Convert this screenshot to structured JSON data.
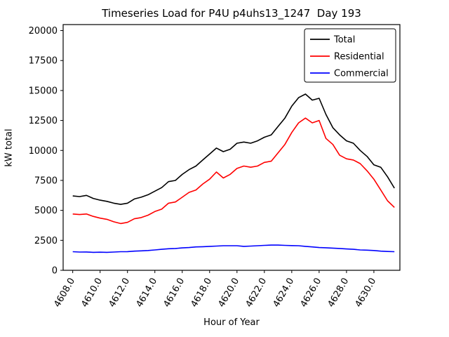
{
  "chart_data": {
    "type": "line",
    "title": "Timeseries Load for P4U p4uhs13_1247  Day 193",
    "xlabel": "Hour of Year",
    "ylabel": "kW total",
    "xlim": [
      4607.3,
      4631.9
    ],
    "ylim": [
      0,
      20500
    ],
    "grid": false,
    "legend_position": "upper right",
    "xticks": [
      4608,
      4610,
      4612,
      4614,
      4616,
      4618,
      4620,
      4622,
      4624,
      4626,
      4628,
      4630
    ],
    "xtick_labels": [
      "4608.0",
      "4610.0",
      "4612.0",
      "4614.0",
      "4616.0",
      "4618.0",
      "4620.0",
      "4622.0",
      "4624.0",
      "4626.0",
      "4628.0",
      "4630.0"
    ],
    "yticks": [
      0,
      2500,
      5000,
      7500,
      10000,
      12500,
      15000,
      17500,
      20000
    ],
    "ytick_labels": [
      "0",
      "2500",
      "5000",
      "7500",
      "10000",
      "12500",
      "15000",
      "17500",
      "20000"
    ],
    "x": [
      4608.0,
      4608.5,
      4609.0,
      4609.5,
      4610.0,
      4610.5,
      4611.0,
      4611.5,
      4612.0,
      4612.5,
      4613.0,
      4613.5,
      4614.0,
      4614.5,
      4615.0,
      4615.5,
      4616.0,
      4616.5,
      4617.0,
      4617.5,
      4618.0,
      4618.5,
      4619.0,
      4619.5,
      4620.0,
      4620.5,
      4621.0,
      4621.5,
      4622.0,
      4622.5,
      4623.0,
      4623.5,
      4624.0,
      4624.5,
      4625.0,
      4625.5,
      4626.0,
      4626.5,
      4627.0,
      4627.5,
      4628.0,
      4628.5,
      4629.0,
      4629.5,
      4630.0,
      4630.5,
      4631.0,
      4631.5
    ],
    "series": [
      {
        "name": "Total",
        "color": "#000000",
        "values": [
          6200,
          6150,
          6250,
          6000,
          5850,
          5750,
          5600,
          5500,
          5600,
          5950,
          6100,
          6300,
          6600,
          6900,
          7400,
          7500,
          8000,
          8400,
          8700,
          9200,
          9700,
          10200,
          9900,
          10100,
          10600,
          10700,
          10600,
          10800,
          11100,
          11300,
          12000,
          12700,
          13700,
          14400,
          14700,
          14200,
          14350,
          13000,
          11900,
          11300,
          10800,
          10600,
          10000,
          9500,
          8800,
          8600,
          7800,
          6850
        ]
      },
      {
        "name": "Residential",
        "color": "#ff0000",
        "values": [
          4700,
          4650,
          4700,
          4500,
          4350,
          4250,
          4050,
          3900,
          4000,
          4300,
          4400,
          4600,
          4900,
          5100,
          5600,
          5700,
          6100,
          6500,
          6700,
          7200,
          7600,
          8200,
          7700,
          8000,
          8500,
          8700,
          8600,
          8700,
          9000,
          9100,
          9800,
          10500,
          11500,
          12300,
          12700,
          12300,
          12500,
          11000,
          10500,
          9600,
          9300,
          9200,
          8900,
          8300,
          7600,
          6700,
          5800,
          5250
        ]
      },
      {
        "name": "Commercial",
        "color": "#0000ff",
        "values": [
          1550,
          1520,
          1530,
          1500,
          1510,
          1500,
          1520,
          1550,
          1560,
          1600,
          1620,
          1650,
          1700,
          1750,
          1800,
          1820,
          1870,
          1900,
          1950,
          1970,
          2000,
          2020,
          2050,
          2050,
          2050,
          2000,
          2020,
          2050,
          2080,
          2100,
          2100,
          2080,
          2060,
          2050,
          2000,
          1950,
          1900,
          1880,
          1850,
          1820,
          1780,
          1750,
          1700,
          1680,
          1650,
          1600,
          1570,
          1550
        ]
      }
    ]
  }
}
